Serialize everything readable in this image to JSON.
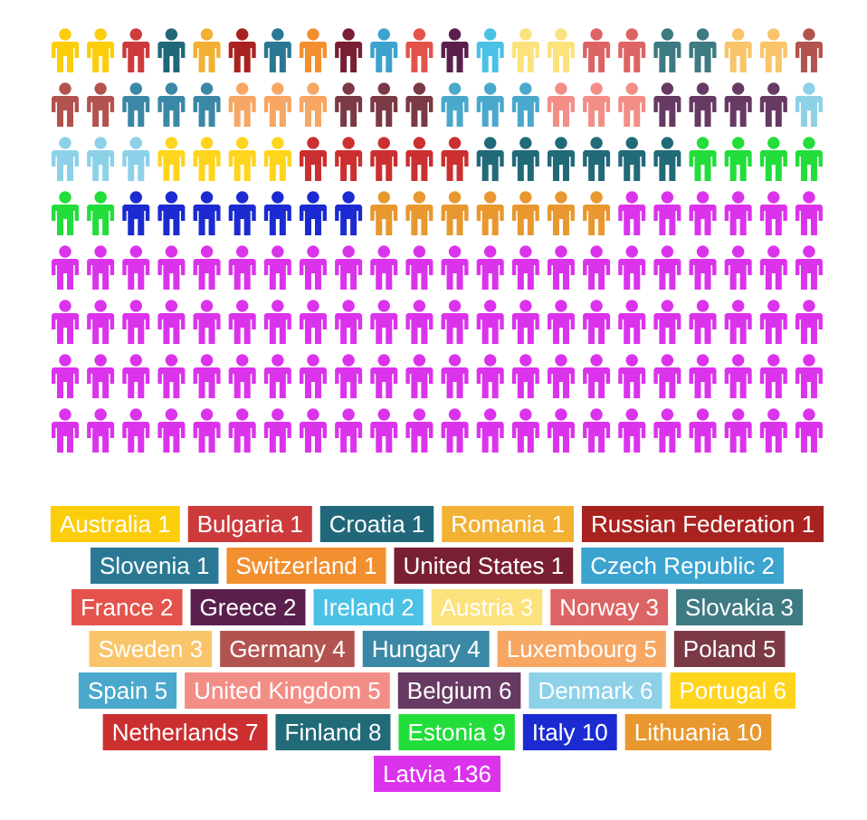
{
  "chart_data": {
    "type": "other",
    "categories": [
      "Australia",
      "Bulgaria",
      "Croatia",
      "Romania",
      "Russian Federation",
      "Slovenia",
      "Switzerland",
      "United States",
      "Czech Republic",
      "France",
      "Greece",
      "Ireland",
      "Austria",
      "Norway",
      "Slovakia",
      "Sweden",
      "Germany",
      "Hungary",
      "Luxembourg",
      "Poland",
      "Spain",
      "United Kingdom",
      "Belgium",
      "Denmark",
      "Portugal",
      "Netherlands",
      "Finland",
      "Estonia",
      "Italy",
      "Lithuania",
      "Latvia"
    ],
    "values": [
      1,
      1,
      1,
      1,
      1,
      1,
      1,
      1,
      2,
      2,
      2,
      2,
      3,
      3,
      3,
      3,
      4,
      4,
      5,
      5,
      5,
      5,
      6,
      6,
      6,
      7,
      8,
      9,
      10,
      10,
      136
    ],
    "colors": [
      "#fccd0a",
      "#cd3a3c",
      "#21677a",
      "#f2b134",
      "#a8231f",
      "#2a7894",
      "#f28f2f",
      "#791f33",
      "#3ca3cf",
      "#e4534b",
      "#5b1f4d",
      "#4cc1e6",
      "#fbe27c",
      "#dd6464",
      "#3d7a82",
      "#f9c46a",
      "#b3534f",
      "#3b88a6",
      "#f7a664",
      "#7b3946",
      "#4aa8cc",
      "#f38e87",
      "#663a62",
      "#8dd1e8",
      "#ffd41c",
      "#cb2f30",
      "#216a78",
      "#22dd3a",
      "#1b2bd1",
      "#e8982e",
      "#db33ec"
    ],
    "data_labels": true
  }
}
